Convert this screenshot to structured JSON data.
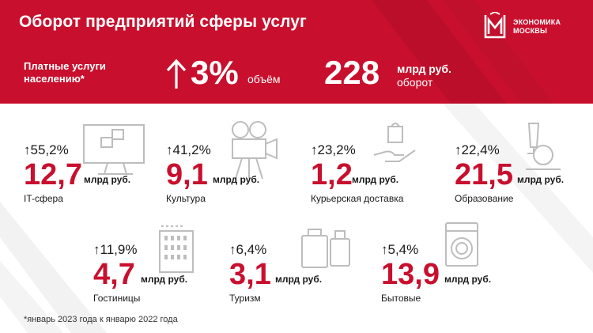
{
  "header": {
    "title": "Оборот предприятий сферы услуг",
    "label": "Платные услуги населению*",
    "pct": "3%",
    "pct_caption": "объём",
    "big_value": "228",
    "big_unit": "млрд руб.",
    "big_caption": "оборот"
  },
  "logo": {
    "line1": "ЭКОНОМИКА",
    "line2": "МОСКВЫ"
  },
  "stats": [
    {
      "pct": "55,2%",
      "value": "12,7",
      "unit": "млрд руб.",
      "caption": "IT-сфера",
      "icon": "monitor-icon"
    },
    {
      "pct": "41,2%",
      "value": "9,1",
      "unit": "млрд руб.",
      "caption": "Культура",
      "icon": "film-camera-icon"
    },
    {
      "pct": "23,2%",
      "value": "1,2",
      "unit": "млрд руб.",
      "caption": "Курьерская доставка",
      "icon": "delivery-hand-icon"
    },
    {
      "pct": "22,4%",
      "value": "21,5",
      "unit": "млрд руб.",
      "caption": "Образование",
      "icon": "microscope-icon"
    },
    {
      "pct": "11,9%",
      "value": "4,7",
      "unit": "млрд руб.",
      "caption": "Гостиницы",
      "icon": "hotel-icon"
    },
    {
      "pct": "6,4%",
      "value": "3,1",
      "unit": "млрд руб.",
      "caption": "Туризм",
      "icon": "suitcase-icon"
    },
    {
      "pct": "5,4%",
      "value": "13,9",
      "unit": "млрд руб.",
      "caption": "Бытовые",
      "icon": "washing-machine-icon"
    }
  ],
  "footnote": "*январь 2023 года к январю 2022 года",
  "colors": {
    "accent": "#c8102e",
    "text": "#1a1a1a",
    "icon": "#bdbdbd"
  }
}
